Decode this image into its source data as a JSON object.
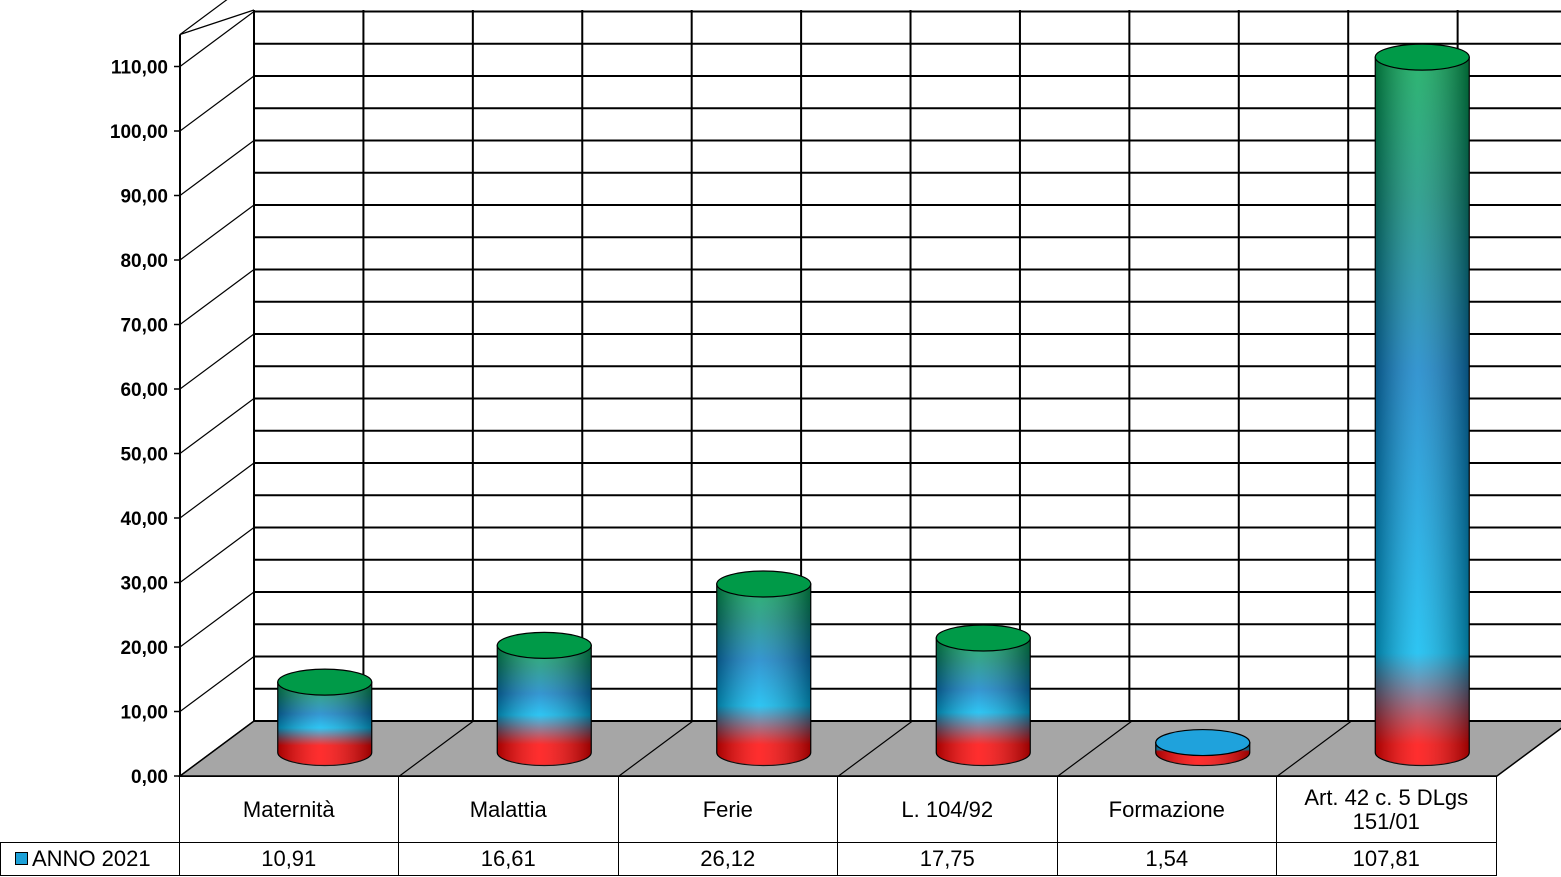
{
  "chart_data": {
    "type": "bar",
    "categories": [
      "Maternità",
      "Malattia",
      "Ferie",
      "L. 104/92",
      "Formazione",
      "Art. 42 c. 5 DLgs 151/01"
    ],
    "series": [
      {
        "name": "ANNO 2021",
        "values": [
          10.91,
          16.61,
          26.12,
          17.75,
          1.54,
          107.81
        ]
      }
    ],
    "value_labels": [
      "10,91",
      "16,61",
      "26,12",
      "17,75",
      "1,54",
      "107,81"
    ],
    "ylim": [
      0,
      110
    ],
    "yticks": [
      "0,00",
      "10,00",
      "20,00",
      "30,00",
      "40,00",
      "50,00",
      "60,00",
      "70,00",
      "80,00",
      "90,00",
      "100,00",
      "110,00"
    ],
    "grid": true,
    "style": "3d-cylinder",
    "legend": "data-table",
    "colors": {
      "floor": "#a6a6a6",
      "bar_top": "#00a651",
      "bar_mid": "#00b8f0",
      "bar_bottom": "#ff0000"
    }
  }
}
